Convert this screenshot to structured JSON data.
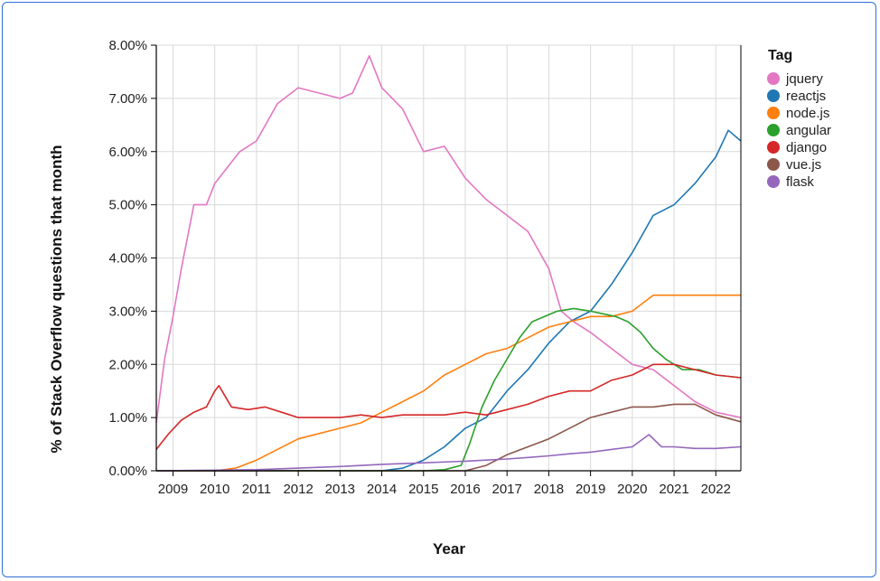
{
  "chart_data": {
    "type": "line",
    "title": "",
    "xlabel": "Year",
    "ylabel": "% of Stack Overflow questions that month",
    "x_tick_labels": [
      "2009",
      "2010",
      "2011",
      "2012",
      "2013",
      "2014",
      "2015",
      "2016",
      "2017",
      "2018",
      "2019",
      "2020",
      "2021",
      "2022"
    ],
    "y_tick_labels": [
      "0.00%",
      "1.00%",
      "2.00%",
      "3.00%",
      "4.00%",
      "5.00%",
      "6.00%",
      "7.00%",
      "8.00%"
    ],
    "xlim": [
      2008.6,
      2022.6
    ],
    "ylim": [
      0,
      8
    ],
    "grid": true,
    "legend": {
      "title": "Tag",
      "placement": "right"
    },
    "series": [
      {
        "name": "jquery",
        "color": "#e377c2",
        "x": [
          2008.6,
          2008.8,
          2009.0,
          2009.2,
          2009.5,
          2009.8,
          2010.0,
          2010.3,
          2010.6,
          2011.0,
          2011.5,
          2012.0,
          2012.5,
          2013.0,
          2013.3,
          2013.7,
          2014.0,
          2014.5,
          2015.0,
          2015.5,
          2016.0,
          2016.5,
          2017.0,
          2017.5,
          2018.0,
          2018.3,
          2018.6,
          2019.0,
          2019.5,
          2020.0,
          2020.5,
          2021.0,
          2021.5,
          2022.0,
          2022.6
        ],
        "y": [
          0.9,
          2.1,
          2.9,
          3.8,
          5.0,
          5.0,
          5.4,
          5.7,
          6.0,
          6.2,
          6.9,
          7.2,
          7.1,
          7.0,
          7.1,
          7.8,
          7.2,
          6.8,
          6.0,
          6.1,
          5.5,
          5.1,
          4.8,
          4.5,
          3.8,
          3.0,
          2.8,
          2.6,
          2.3,
          2.0,
          1.9,
          1.6,
          1.3,
          1.1,
          1.0
        ]
      },
      {
        "name": "reactjs",
        "color": "#1f77b4",
        "x": [
          2008.6,
          2014.0,
          2014.5,
          2015.0,
          2015.5,
          2016.0,
          2016.5,
          2017.0,
          2017.5,
          2018.0,
          2018.5,
          2019.0,
          2019.5,
          2020.0,
          2020.5,
          2021.0,
          2021.5,
          2022.0,
          2022.3,
          2022.6
        ],
        "y": [
          0,
          0,
          0.05,
          0.2,
          0.45,
          0.8,
          1.0,
          1.5,
          1.9,
          2.4,
          2.8,
          3.0,
          3.5,
          4.1,
          4.8,
          5.0,
          5.4,
          5.9,
          6.4,
          6.2
        ]
      },
      {
        "name": "node.js",
        "color": "#ff7f0e",
        "x": [
          2008.6,
          2010.0,
          2010.5,
          2011.0,
          2011.5,
          2012.0,
          2012.5,
          2013.0,
          2013.5,
          2014.0,
          2014.5,
          2015.0,
          2015.5,
          2016.0,
          2016.5,
          2017.0,
          2017.5,
          2018.0,
          2018.5,
          2019.0,
          2019.5,
          2020.0,
          2020.5,
          2021.0,
          2021.5,
          2022.0,
          2022.6
        ],
        "y": [
          0,
          0,
          0.05,
          0.2,
          0.4,
          0.6,
          0.7,
          0.8,
          0.9,
          1.1,
          1.3,
          1.5,
          1.8,
          2.0,
          2.2,
          2.3,
          2.5,
          2.7,
          2.8,
          2.9,
          2.9,
          3.0,
          3.3,
          3.3,
          3.3,
          3.3,
          3.3
        ]
      },
      {
        "name": "angular",
        "color": "#2ca02c",
        "x": [
          2008.6,
          2015.0,
          2015.5,
          2015.9,
          2016.1,
          2016.4,
          2016.7,
          2017.0,
          2017.3,
          2017.6,
          2017.9,
          2018.2,
          2018.6,
          2019.0,
          2019.3,
          2019.6,
          2019.9,
          2020.2,
          2020.5,
          2020.8,
          2021.2,
          2021.6,
          2022.0,
          2022.6
        ],
        "y": [
          0,
          0,
          0.02,
          0.1,
          0.5,
          1.2,
          1.7,
          2.1,
          2.5,
          2.8,
          2.9,
          3.0,
          3.05,
          3.0,
          2.95,
          2.9,
          2.8,
          2.6,
          2.3,
          2.1,
          1.9,
          1.9,
          1.8,
          1.75
        ]
      },
      {
        "name": "django",
        "color": "#d62728",
        "x": [
          2008.6,
          2008.9,
          2009.2,
          2009.5,
          2009.8,
          2010.0,
          2010.1,
          2010.4,
          2010.8,
          2011.2,
          2011.6,
          2012.0,
          2012.5,
          2013.0,
          2013.5,
          2014.0,
          2014.5,
          2015.0,
          2015.5,
          2016.0,
          2016.5,
          2017.0,
          2017.5,
          2018.0,
          2018.5,
          2019.0,
          2019.5,
          2020.0,
          2020.5,
          2021.0,
          2021.5,
          2022.0,
          2022.6
        ],
        "y": [
          0.4,
          0.7,
          0.95,
          1.1,
          1.2,
          1.5,
          1.6,
          1.2,
          1.15,
          1.2,
          1.1,
          1.0,
          1.0,
          1.0,
          1.05,
          1.0,
          1.05,
          1.05,
          1.05,
          1.1,
          1.05,
          1.15,
          1.25,
          1.4,
          1.5,
          1.5,
          1.7,
          1.8,
          2.0,
          2.0,
          1.9,
          1.8,
          1.75
        ]
      },
      {
        "name": "vue.js",
        "color": "#8c564b",
        "x": [
          2008.6,
          2016.0,
          2016.5,
          2017.0,
          2017.5,
          2018.0,
          2018.5,
          2019.0,
          2019.5,
          2020.0,
          2020.5,
          2021.0,
          2021.5,
          2022.0,
          2022.6
        ],
        "y": [
          0,
          0,
          0.1,
          0.3,
          0.45,
          0.6,
          0.8,
          1.0,
          1.1,
          1.2,
          1.2,
          1.25,
          1.25,
          1.05,
          0.92
        ]
      },
      {
        "name": "flask",
        "color": "#9467bd",
        "x": [
          2008.6,
          2011.0,
          2012.0,
          2013.0,
          2014.0,
          2015.0,
          2016.0,
          2016.5,
          2017.0,
          2017.5,
          2018.0,
          2018.5,
          2019.0,
          2019.5,
          2020.0,
          2020.4,
          2020.7,
          2021.0,
          2021.5,
          2022.0,
          2022.6
        ],
        "y": [
          0,
          0.02,
          0.05,
          0.08,
          0.12,
          0.15,
          0.18,
          0.2,
          0.22,
          0.25,
          0.28,
          0.32,
          0.35,
          0.4,
          0.45,
          0.68,
          0.45,
          0.45,
          0.42,
          0.42,
          0.45
        ]
      }
    ]
  }
}
